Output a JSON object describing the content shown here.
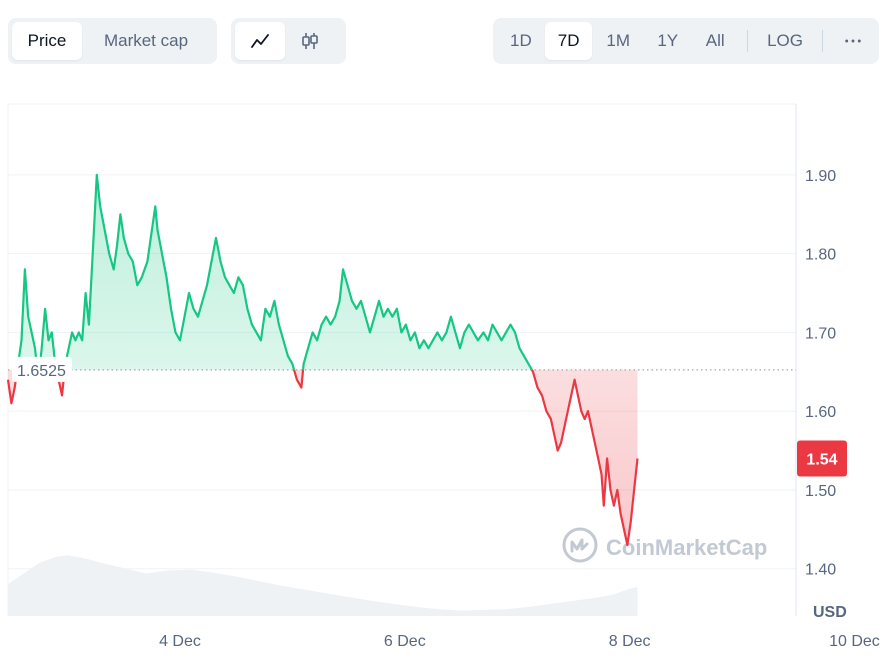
{
  "toolbar": {
    "metric_tabs": [
      {
        "label": "Price",
        "active": true
      },
      {
        "label": "Market cap",
        "active": false
      }
    ],
    "chart_types": [
      {
        "icon": "line-chart-icon",
        "active": true
      },
      {
        "icon": "candlestick-icon",
        "active": false
      }
    ],
    "ranges": [
      {
        "label": "1D",
        "active": false
      },
      {
        "label": "7D",
        "active": true
      },
      {
        "label": "1M",
        "active": false
      },
      {
        "label": "1Y",
        "active": false
      },
      {
        "label": "All",
        "active": false
      }
    ],
    "log_label": "LOG",
    "more_icon": "more-horizontal-icon"
  },
  "colors": {
    "up": "#16c784",
    "down": "#ea3943",
    "volume": "#eff2f5",
    "grid": "#eff2f5",
    "reference_line": "#a1a7bb",
    "watermark": "#c3c9d3"
  },
  "watermark": {
    "text": "CoinMarketCap",
    "icon": "coinmarketcap-logo-icon"
  },
  "chart_data": {
    "type": "area",
    "title": "",
    "ylabel": "USD",
    "ylim": [
      1.34,
      1.99
    ],
    "y_ticks": [
      1.4,
      1.5,
      1.6,
      1.7,
      1.8,
      1.9
    ],
    "y_tick_labels": [
      "1.40",
      "1.50",
      "1.60",
      "1.70",
      "1.80",
      "1.90"
    ],
    "x_ticks": [
      1.0,
      3.0,
      5.0,
      7.0
    ],
    "x_tick_labels": [
      "4 Dec",
      "6 Dec",
      "8 Dec",
      "10 Dec"
    ],
    "x_range": [
      -0.53,
      6.48
    ],
    "reference_price": 1.6525,
    "reference_label": "1.6525",
    "current_price": 1.54,
    "current_label": "1.54",
    "grid": true,
    "price_series": {
      "name": "Price",
      "x_unit": "days",
      "points": [
        [
          -0.53,
          1.64
        ],
        [
          -0.5,
          1.61
        ],
        [
          -0.47,
          1.63
        ],
        [
          -0.44,
          1.66
        ],
        [
          -0.41,
          1.69
        ],
        [
          -0.38,
          1.78
        ],
        [
          -0.35,
          1.72
        ],
        [
          -0.32,
          1.7
        ],
        [
          -0.29,
          1.68
        ],
        [
          -0.26,
          1.64
        ],
        [
          -0.23,
          1.68
        ],
        [
          -0.2,
          1.73
        ],
        [
          -0.17,
          1.69
        ],
        [
          -0.14,
          1.7
        ],
        [
          -0.11,
          1.66
        ],
        [
          -0.08,
          1.64
        ],
        [
          -0.05,
          1.62
        ],
        [
          -0.02,
          1.66
        ],
        [
          0.01,
          1.68
        ],
        [
          0.04,
          1.7
        ],
        [
          0.07,
          1.69
        ],
        [
          0.1,
          1.7
        ],
        [
          0.13,
          1.69
        ],
        [
          0.16,
          1.75
        ],
        [
          0.19,
          1.71
        ],
        [
          0.22,
          1.79
        ],
        [
          0.26,
          1.9
        ],
        [
          0.29,
          1.86
        ],
        [
          0.33,
          1.83
        ],
        [
          0.37,
          1.8
        ],
        [
          0.41,
          1.78
        ],
        [
          0.44,
          1.81
        ],
        [
          0.47,
          1.85
        ],
        [
          0.5,
          1.82
        ],
        [
          0.54,
          1.8
        ],
        [
          0.58,
          1.79
        ],
        [
          0.62,
          1.76
        ],
        [
          0.66,
          1.77
        ],
        [
          0.71,
          1.79
        ],
        [
          0.75,
          1.83
        ],
        [
          0.78,
          1.86
        ],
        [
          0.8,
          1.83
        ],
        [
          0.84,
          1.8
        ],
        [
          0.88,
          1.77
        ],
        [
          0.92,
          1.73
        ],
        [
          0.96,
          1.7
        ],
        [
          1.0,
          1.69
        ],
        [
          1.04,
          1.72
        ],
        [
          1.08,
          1.75
        ],
        [
          1.12,
          1.73
        ],
        [
          1.16,
          1.72
        ],
        [
          1.2,
          1.74
        ],
        [
          1.24,
          1.76
        ],
        [
          1.28,
          1.79
        ],
        [
          1.32,
          1.82
        ],
        [
          1.36,
          1.79
        ],
        [
          1.4,
          1.77
        ],
        [
          1.44,
          1.76
        ],
        [
          1.48,
          1.75
        ],
        [
          1.52,
          1.77
        ],
        [
          1.56,
          1.76
        ],
        [
          1.6,
          1.73
        ],
        [
          1.64,
          1.71
        ],
        [
          1.68,
          1.7
        ],
        [
          1.72,
          1.69
        ],
        [
          1.76,
          1.73
        ],
        [
          1.8,
          1.72
        ],
        [
          1.84,
          1.74
        ],
        [
          1.88,
          1.71
        ],
        [
          1.92,
          1.69
        ],
        [
          1.96,
          1.67
        ],
        [
          2.0,
          1.66
        ],
        [
          2.04,
          1.64
        ],
        [
          2.08,
          1.63
        ],
        [
          2.1,
          1.66
        ],
        [
          2.14,
          1.68
        ],
        [
          2.18,
          1.7
        ],
        [
          2.22,
          1.69
        ],
        [
          2.26,
          1.71
        ],
        [
          2.3,
          1.72
        ],
        [
          2.34,
          1.71
        ],
        [
          2.38,
          1.72
        ],
        [
          2.42,
          1.74
        ],
        [
          2.45,
          1.78
        ],
        [
          2.49,
          1.76
        ],
        [
          2.53,
          1.74
        ],
        [
          2.57,
          1.73
        ],
        [
          2.61,
          1.74
        ],
        [
          2.65,
          1.72
        ],
        [
          2.69,
          1.7
        ],
        [
          2.73,
          1.72
        ],
        [
          2.77,
          1.74
        ],
        [
          2.81,
          1.72
        ],
        [
          2.85,
          1.73
        ],
        [
          2.89,
          1.72
        ],
        [
          2.93,
          1.73
        ],
        [
          2.97,
          1.7
        ],
        [
          3.01,
          1.71
        ],
        [
          3.05,
          1.69
        ],
        [
          3.09,
          1.7
        ],
        [
          3.13,
          1.68
        ],
        [
          3.17,
          1.69
        ],
        [
          3.21,
          1.68
        ],
        [
          3.25,
          1.69
        ],
        [
          3.29,
          1.7
        ],
        [
          3.33,
          1.69
        ],
        [
          3.37,
          1.7
        ],
        [
          3.41,
          1.72
        ],
        [
          3.45,
          1.7
        ],
        [
          3.49,
          1.68
        ],
        [
          3.53,
          1.7
        ],
        [
          3.57,
          1.71
        ],
        [
          3.61,
          1.7
        ],
        [
          3.65,
          1.69
        ],
        [
          3.7,
          1.7
        ],
        [
          3.74,
          1.69
        ],
        [
          3.78,
          1.71
        ],
        [
          3.82,
          1.7
        ],
        [
          3.86,
          1.69
        ],
        [
          3.9,
          1.7
        ],
        [
          3.94,
          1.71
        ],
        [
          3.98,
          1.7
        ],
        [
          4.02,
          1.68
        ],
        [
          4.06,
          1.67
        ],
        [
          4.1,
          1.66
        ],
        [
          4.14,
          1.65
        ],
        [
          4.18,
          1.63
        ],
        [
          4.22,
          1.62
        ],
        [
          4.26,
          1.6
        ],
        [
          4.3,
          1.59
        ],
        [
          4.33,
          1.57
        ],
        [
          4.36,
          1.55
        ],
        [
          4.39,
          1.56
        ],
        [
          4.42,
          1.58
        ],
        [
          4.45,
          1.6
        ],
        [
          4.48,
          1.62
        ],
        [
          4.51,
          1.64
        ],
        [
          4.54,
          1.62
        ],
        [
          4.57,
          1.6
        ],
        [
          4.6,
          1.59
        ],
        [
          4.63,
          1.6
        ],
        [
          4.66,
          1.58
        ],
        [
          4.69,
          1.56
        ],
        [
          4.72,
          1.54
        ],
        [
          4.75,
          1.52
        ],
        [
          4.77,
          1.48
        ],
        [
          4.8,
          1.54
        ],
        [
          4.83,
          1.5
        ],
        [
          4.86,
          1.48
        ],
        [
          4.89,
          1.5
        ],
        [
          4.92,
          1.47
        ],
        [
          4.95,
          1.45
        ],
        [
          4.98,
          1.43
        ],
        [
          5.01,
          1.46
        ],
        [
          5.04,
          1.5
        ],
        [
          5.07,
          1.54
        ]
      ]
    },
    "volume_series": {
      "name": "Volume",
      "x": [
        -0.53,
        -0.4,
        -0.25,
        -0.1,
        0.0,
        0.15,
        0.3,
        0.5,
        0.7,
        0.9,
        1.1,
        1.3,
        1.5,
        1.7,
        1.9,
        2.1,
        2.3,
        2.5,
        2.7,
        2.9,
        3.1,
        3.3,
        3.5,
        3.7,
        3.9,
        4.1,
        4.3,
        4.5,
        4.7,
        4.85,
        5.0,
        5.07
      ],
      "relative": [
        0.42,
        0.55,
        0.7,
        0.78,
        0.8,
        0.76,
        0.7,
        0.63,
        0.56,
        0.6,
        0.61,
        0.57,
        0.52,
        0.46,
        0.4,
        0.35,
        0.3,
        0.25,
        0.2,
        0.16,
        0.12,
        0.09,
        0.07,
        0.08,
        0.09,
        0.12,
        0.16,
        0.2,
        0.24,
        0.28,
        0.36,
        0.38
      ]
    }
  }
}
